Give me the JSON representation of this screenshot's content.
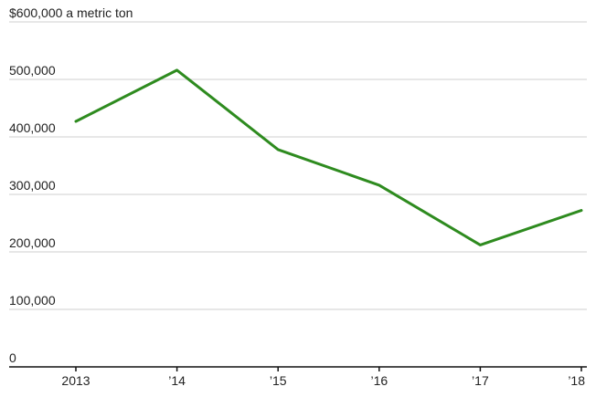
{
  "chart_data": {
    "type": "line",
    "title": "",
    "xlabel": "",
    "ylabel": "",
    "unit_label": "a metric ton",
    "categories": [
      "2013",
      "’14",
      "’15",
      "’16",
      "’17",
      "’18"
    ],
    "series": [
      {
        "values": [
          427000,
          516000,
          378000,
          316000,
          212000,
          272000
        ],
        "color": "#2e8b1f"
      }
    ],
    "ylim": [
      0,
      600000
    ],
    "yticks": [
      0,
      100000,
      200000,
      300000,
      400000,
      500000,
      600000
    ],
    "ytick_labels": [
      "0",
      "100,000",
      "200,000",
      "300,000",
      "400,000",
      "500,000",
      "$600,000"
    ],
    "grid": true,
    "legend": "none"
  }
}
